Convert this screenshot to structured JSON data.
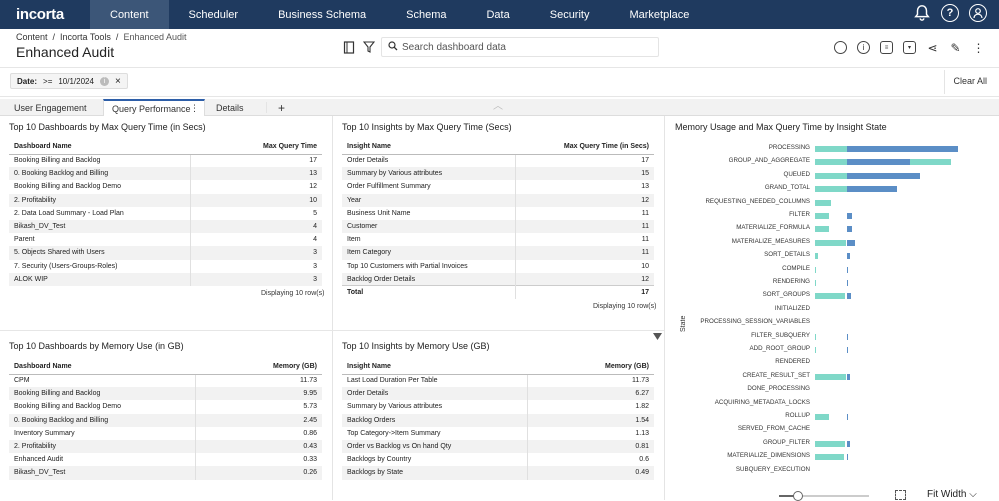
{
  "nav": {
    "logo": "incorta",
    "items": [
      "Content",
      "Scheduler",
      "Business Schema",
      "Schema",
      "Data",
      "Security",
      "Marketplace"
    ],
    "active": 0
  },
  "header": {
    "breadcrumb": [
      "Content",
      "Incorta Tools",
      "Enhanced Audit"
    ],
    "title": "Enhanced Audit",
    "search_placeholder": "Search dashboard data"
  },
  "filter": {
    "label": "Date:",
    "op": ">=",
    "value": "10/1/2024",
    "clear_all": "Clear All"
  },
  "tabs": [
    "User Engagement",
    "Query Performance",
    "Details"
  ],
  "active_tab": 1,
  "panels": {
    "dash_query": {
      "title": "Top 10 Dashboards by Max Query Time (in Secs)",
      "headers": [
        "Dashboard Name",
        "Max Query Time"
      ],
      "rows": [
        [
          "Booking Billing and Backlog",
          "17"
        ],
        [
          "0. Booking Backlog and Billing",
          "13"
        ],
        [
          "Booking Billing and Backlog Demo",
          "12"
        ],
        [
          "2. Profitability",
          "10"
        ],
        [
          "2. Data Load Summary - Load Plan",
          "5"
        ],
        [
          "Bikash_DV_Test",
          "4"
        ],
        [
          "Parent",
          "4"
        ],
        [
          "5. Objects Shared with Users",
          "3"
        ],
        [
          "7. Security (Users-Groups-Roles)",
          "3"
        ],
        [
          "ALOK WIP",
          "3"
        ]
      ],
      "footer": "Displaying 10 row(s)"
    },
    "insight_query": {
      "title": "Top 10 Insights by Max Query Time (Secs)",
      "headers": [
        "Insight Name",
        "Max Query Time (in Secs)"
      ],
      "rows": [
        [
          "Order Details",
          "17"
        ],
        [
          "Summary by Various attributes",
          "15"
        ],
        [
          "Order Fulfillment Summary",
          "13"
        ],
        [
          "Year",
          "12"
        ],
        [
          "Business Unit Name",
          "11"
        ],
        [
          "Customer",
          "11"
        ],
        [
          "Item",
          "11"
        ],
        [
          "Item Category",
          "11"
        ],
        [
          "Top 10 Customers with Partial Invoices",
          "10"
        ],
        [
          "Backlog Order Details",
          "12"
        ]
      ],
      "total": [
        "Total",
        "17"
      ],
      "footer": "Displaying 10 row(s)"
    },
    "dash_memory": {
      "title": "Top 10 Dashboards by Memory Use (in GB)",
      "headers": [
        "Dashboard Name",
        "Memory (GB)"
      ],
      "rows": [
        [
          "CPM",
          "11.73"
        ],
        [
          "Booking Billing and Backlog",
          "9.95"
        ],
        [
          "Booking Billing and Backlog Demo",
          "5.73"
        ],
        [
          "0. Booking Backlog and Billing",
          "2.45"
        ],
        [
          "Inventory Summary",
          "0.86"
        ],
        [
          "2. Profitability",
          "0.43"
        ],
        [
          "Enhanced Audit",
          "0.33"
        ],
        [
          "Bikash_DV_Test",
          "0.26"
        ]
      ]
    },
    "insight_memory": {
      "title": "Top 10 Insights by Memory Use (GB)",
      "headers": [
        "Insight Name",
        "Memory (GB)"
      ],
      "rows": [
        [
          "Last Load Duration Per Table",
          "11.73"
        ],
        [
          "Order Details",
          "6.27"
        ],
        [
          "Summary by Various attributes",
          "1.82"
        ],
        [
          "Backlog Orders",
          "1.54"
        ],
        [
          "Top Category->Item Summary",
          "1.13"
        ],
        [
          "Order vs Backlog vs On hand Qty",
          "0.81"
        ],
        [
          "Backlogs by Country",
          "0.6"
        ],
        [
          "Backlogs by State",
          "0.49"
        ]
      ]
    },
    "chart": {
      "title": "Memory Usage and Max Query Time by Insight State",
      "axis_label": "State"
    }
  },
  "chart_data": {
    "type": "bar",
    "orientation": "horizontal",
    "title": "Memory Usage and Max Query Time by Insight State",
    "ylabel": "State",
    "categories": [
      "PROCESSING",
      "GROUP_AND_AGGREGATE",
      "QUEUED",
      "GRAND_TOTAL",
      "REQUESTING_NEEDED_COLUMNS",
      "FILTER",
      "MATERIALIZE_FORMULA",
      "MATERIALIZE_MEASURES",
      "SORT_DETAILS",
      "COMPILE",
      "RENDERING",
      "SORT_GROUPS",
      "INITIALIZED",
      "PROCESSING_SESSION_VARIABLES",
      "FILTER_SUBQUERY",
      "ADD_ROOT_GROUP",
      "RENDERED",
      "CREATE_RESULT_SET",
      "DONE_PROCESSING",
      "ACQUIRING_METADATA_LOCKS",
      "ROLLUP",
      "SERVED_FROM_CACHE",
      "GROUP_FILTER",
      "MATERIALIZE_DIMENSIONS",
      "SUBQUERY_EXECUTION"
    ],
    "series": [
      {
        "values": [
          105,
          70,
          77,
          60,
          23,
          4,
          4,
          6,
          2,
          1,
          1,
          3,
          0,
          0,
          1,
          1,
          0,
          2,
          0,
          0,
          1,
          0,
          2,
          1,
          0
        ]
      },
      {
        "values": [
          100,
          100,
          72,
          30,
          12,
          10,
          10,
          23,
          2,
          1,
          1,
          22,
          0,
          0,
          1,
          1,
          0,
          23,
          0,
          0,
          10,
          0,
          22,
          21,
          0
        ]
      }
    ],
    "colors": [
      "#5b8ec6",
      "#7fd8c8"
    ],
    "xlim": [
      0,
      110
    ]
  }
}
